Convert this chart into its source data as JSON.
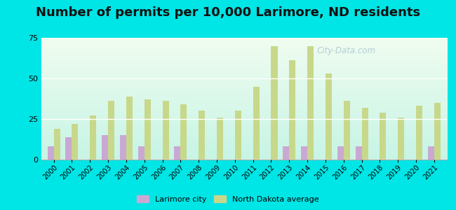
{
  "title": "Number of permits per 10,000 Larimore, ND residents",
  "years": [
    2000,
    2001,
    2002,
    2003,
    2004,
    2005,
    2006,
    2007,
    2008,
    2009,
    2010,
    2011,
    2012,
    2013,
    2014,
    2015,
    2016,
    2017,
    2018,
    2019,
    2020,
    2021
  ],
  "larimore": [
    8,
    14,
    0,
    15,
    15,
    8,
    0,
    8,
    0,
    0,
    0,
    0,
    0,
    8,
    8,
    0,
    8,
    8,
    0,
    0,
    0,
    8
  ],
  "nd_avg": [
    19,
    22,
    27,
    36,
    39,
    37,
    36,
    34,
    30,
    26,
    30,
    45,
    70,
    61,
    70,
    53,
    36,
    32,
    29,
    26,
    33,
    35
  ],
  "larimore_color": "#c9a8d4",
  "nd_avg_color": "#c8d88a",
  "outer_bg": "#00e5e5",
  "ylim": [
    0,
    75
  ],
  "yticks": [
    0,
    25,
    50,
    75
  ],
  "title_fontsize": 13,
  "bar_width": 0.35
}
